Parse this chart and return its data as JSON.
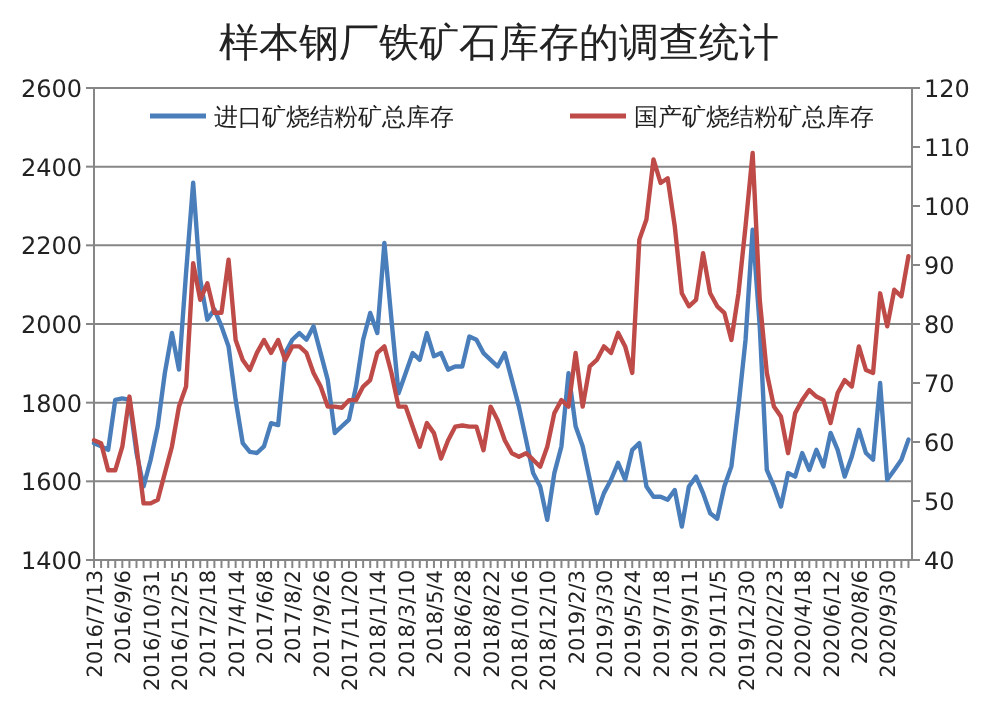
{
  "chart_data": {
    "type": "line",
    "title": "样本钢厂铁矿石库存的调查统计",
    "categories": [
      "2016/7/13",
      null,
      null,
      null,
      "2016/9/6",
      null,
      null,
      null,
      "2016/10/31",
      null,
      null,
      null,
      "2016/12/25",
      null,
      null,
      null,
      "2017/2/18",
      null,
      null,
      null,
      "2017/4/14",
      null,
      null,
      null,
      "2017/6/8",
      null,
      null,
      null,
      "2017/8/2",
      null,
      null,
      null,
      "2017/9/26",
      null,
      null,
      null,
      "2017/11/20",
      null,
      null,
      null,
      "2018/1/14",
      null,
      null,
      null,
      "2018/3/10",
      null,
      null,
      null,
      "2018/5/4",
      null,
      null,
      null,
      "2018/6/28",
      null,
      null,
      null,
      "2018/8/22",
      null,
      null,
      null,
      "2018/10/16",
      null,
      null,
      null,
      "2018/12/10",
      null,
      null,
      null,
      "2019/2/3",
      null,
      null,
      null,
      "2019/3/30",
      null,
      null,
      null,
      "2019/5/24",
      null,
      null,
      null,
      "2019/7/18",
      null,
      null,
      null,
      "2019/9/11",
      null,
      null,
      null,
      "2019/11/5",
      null,
      null,
      null,
      "2019/12/30",
      null,
      null,
      null,
      "2020/2/23",
      null,
      null,
      null,
      "2020/4/18",
      null,
      null,
      null,
      "2020/6/12",
      null,
      null,
      null,
      "2020/8/6",
      null,
      null,
      null,
      "2020/9/30",
      null,
      null,
      null
    ],
    "series": [
      {
        "name": "进口矿烧结粉矿总库存",
        "color": "#4a7ebb",
        "values": [
          1697,
          1689,
          1680,
          1807,
          1811,
          1807,
          1672,
          1587,
          1655,
          1740,
          1875,
          1977,
          1884,
          2130,
          2359,
          2113,
          2011,
          2037,
          1994,
          1943,
          1807,
          1697,
          1675,
          1672,
          1689,
          1748,
          1743,
          1926,
          1960,
          1977,
          1960,
          1994,
          1926,
          1858,
          1723,
          1740,
          1757,
          1841,
          1960,
          2028,
          1977,
          2206,
          2011,
          1824,
          1875,
          1926,
          1909,
          1977,
          1918,
          1926,
          1884,
          1892,
          1892,
          1968,
          1960,
          1926,
          1909,
          1892,
          1926,
          1858,
          1790,
          1706,
          1621,
          1587,
          1502,
          1621,
          1689,
          1875,
          1740,
          1689,
          1604,
          1519,
          1570,
          1604,
          1647,
          1604,
          1680,
          1697,
          1587,
          1561,
          1561,
          1553,
          1578,
          1485,
          1587,
          1612,
          1570,
          1519,
          1505,
          1587,
          1638,
          1790,
          1960,
          2240,
          1994,
          1629,
          1587,
          1536,
          1621,
          1612,
          1672,
          1629,
          1680,
          1638,
          1723,
          1680,
          1612,
          1663,
          1731,
          1672,
          1655,
          1850,
          1604,
          1629,
          1655,
          1706
        ]
      },
      {
        "name": "国产矿烧结粉矿总库存",
        "color": "#be4b48",
        "axis": "y2",
        "values": [
          60.3,
          59.8,
          55.2,
          55.2,
          59.2,
          67.7,
          59.2,
          49.6,
          49.6,
          50.2,
          54.7,
          59.2,
          66.0,
          69.4,
          90.3,
          84.1,
          86.9,
          81.9,
          81.9,
          90.9,
          77.3,
          73.9,
          72.2,
          75.1,
          77.3,
          75.1,
          77.3,
          73.9,
          76.2,
          76.2,
          75.1,
          71.7,
          69.4,
          66.0,
          66.0,
          65.8,
          67.1,
          67.1,
          69.4,
          70.5,
          75.1,
          76.2,
          71.7,
          66.0,
          66.0,
          62.6,
          59.2,
          63.2,
          61.5,
          57.2,
          60.3,
          62.6,
          62.8,
          62.6,
          62.6,
          58.6,
          66.0,
          63.7,
          60.3,
          58.1,
          57.5,
          58.1,
          57.0,
          55.8,
          59.2,
          64.9,
          67.1,
          66.0,
          75.1,
          66.0,
          72.8,
          73.9,
          76.2,
          75.1,
          78.5,
          76.2,
          71.7,
          94.3,
          97.7,
          107.9,
          103.9,
          104.7,
          96.6,
          85.2,
          83.0,
          84.1,
          92.0,
          85.2,
          83.0,
          81.9,
          77.3,
          85.2,
          96.6,
          109.0,
          84.1,
          71.7,
          66.0,
          64.3,
          58.1,
          64.9,
          67.1,
          68.8,
          67.7,
          67.1,
          63.2,
          68.3,
          70.5,
          69.4,
          76.2,
          72.2,
          71.7,
          85.2,
          79.6,
          85.8,
          84.7,
          91.5
        ]
      }
    ],
    "ylim": [
      1400,
      2600
    ],
    "yticks": [
      1400,
      1600,
      1800,
      2000,
      2200,
      2400,
      2600
    ],
    "y2lim": [
      40,
      120
    ],
    "y2ticks": [
      40,
      50,
      60,
      70,
      80,
      90,
      100,
      110,
      120
    ],
    "grid": "y",
    "legend": "top"
  }
}
